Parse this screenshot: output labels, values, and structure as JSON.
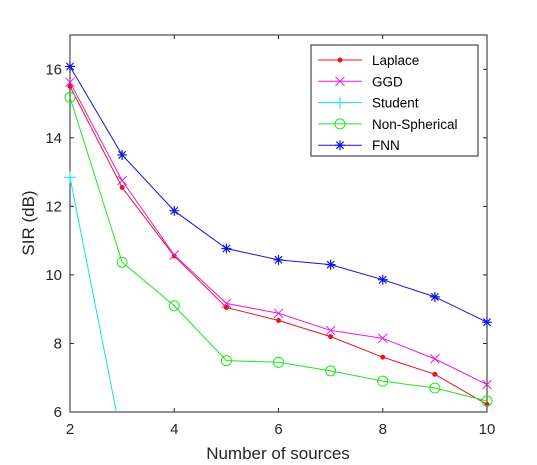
{
  "chart_data": {
    "type": "line",
    "xlabel": "Number of sources",
    "ylabel": "SIR (dB)",
    "xlim": [
      2,
      10
    ],
    "ylim": [
      6,
      17
    ],
    "xticks": [
      2,
      4,
      6,
      8,
      10
    ],
    "yticks": [
      6,
      8,
      10,
      12,
      14,
      16
    ],
    "grid": false,
    "legend_position": "top-right",
    "series": [
      {
        "name": "Laplace",
        "color": "#e8151b",
        "marker": "dot",
        "x": [
          2,
          3,
          4,
          5,
          6,
          7,
          8,
          9,
          10
        ],
        "y": [
          15.5,
          12.55,
          10.55,
          9.05,
          8.67,
          8.2,
          7.6,
          7.1,
          6.22
        ]
      },
      {
        "name": "GGD",
        "color": "#e619e6",
        "marker": "x",
        "x": [
          2,
          3,
          4,
          5,
          6,
          7,
          8,
          9,
          10
        ],
        "y": [
          15.62,
          12.75,
          10.58,
          9.17,
          8.88,
          8.38,
          8.15,
          7.55,
          6.8
        ]
      },
      {
        "name": "Student",
        "color": "#14e1e6",
        "marker": "plus",
        "x": [
          2,
          2.89
        ],
        "y": [
          12.85,
          6.0
        ]
      },
      {
        "name": "Non-Spherical",
        "color": "#1ee81e",
        "marker": "circle",
        "x": [
          2,
          3,
          4,
          5,
          6,
          7,
          8,
          9,
          10
        ],
        "y": [
          15.18,
          10.37,
          9.1,
          7.5,
          7.45,
          7.2,
          6.9,
          6.7,
          6.32
        ]
      },
      {
        "name": "FNN",
        "color": "#1414dc",
        "marker": "asterisk",
        "x": [
          2,
          3,
          4,
          5,
          6,
          7,
          8,
          9,
          10
        ],
        "y": [
          16.08,
          13.5,
          11.87,
          10.77,
          10.44,
          10.3,
          9.86,
          9.36,
          8.62
        ]
      }
    ]
  }
}
